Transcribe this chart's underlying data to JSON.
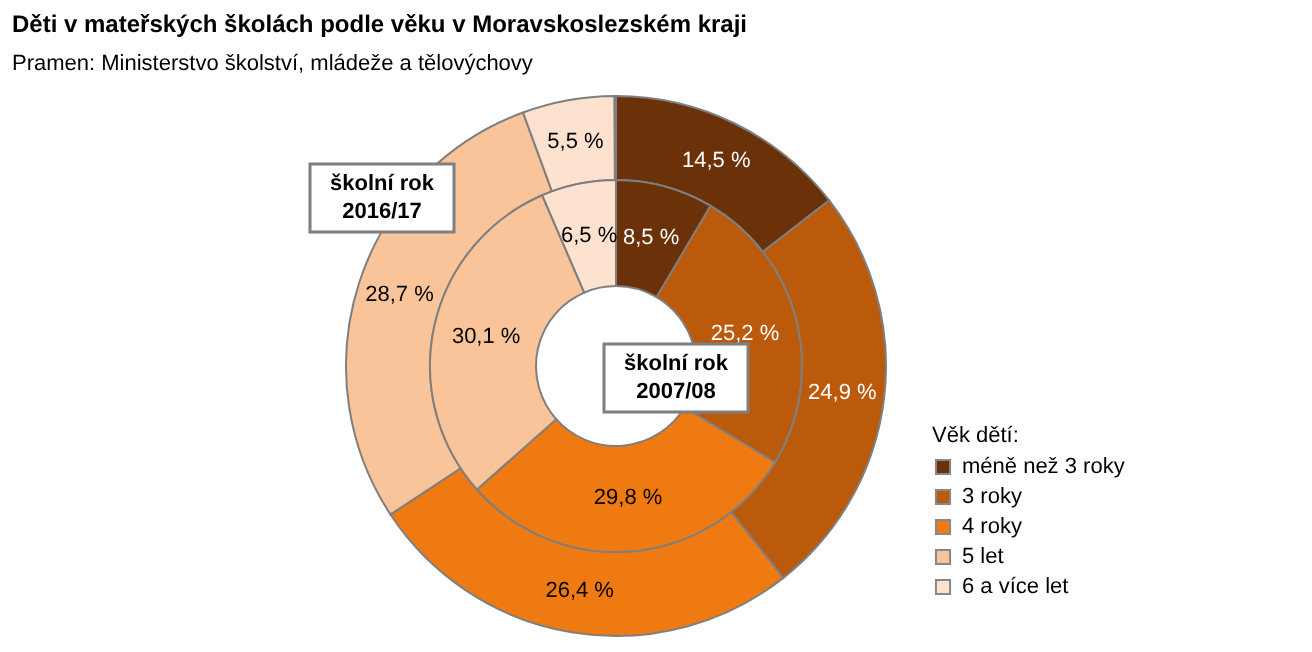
{
  "chart_data": {
    "type": "donut",
    "title": "Děti v mateřských  školách podle věku v Moravskoslezském  kraji",
    "subtitle": "Pramen: Ministerstvo školství, mládeže a tělovýchovy",
    "legend_title": "Věk dětí:",
    "legend": "right",
    "categories": [
      "méně než 3 roky",
      "3 roky",
      "4 roky",
      "5 let",
      "6 a více let"
    ],
    "colors": [
      "#6b3108",
      "#bb5a0a",
      "#f07a12",
      "#f9c49a",
      "#fde2d0"
    ],
    "series": [
      {
        "name": "školní rok 2016/17",
        "values": [
          14.5,
          24.9,
          26.4,
          28.7,
          5.5
        ],
        "value_labels": [
          "14,5 %",
          "24,9 %",
          "26,4 %",
          "28,7 %",
          "5,5 %"
        ]
      },
      {
        "name": "školní rok 2007/08",
        "values": [
          8.5,
          25.2,
          29.8,
          30.1,
          6.5
        ],
        "value_labels": [
          "8,5 %",
          "25,2 %",
          "29,8 %",
          "30,1 %",
          "6,5 %"
        ]
      }
    ]
  }
}
